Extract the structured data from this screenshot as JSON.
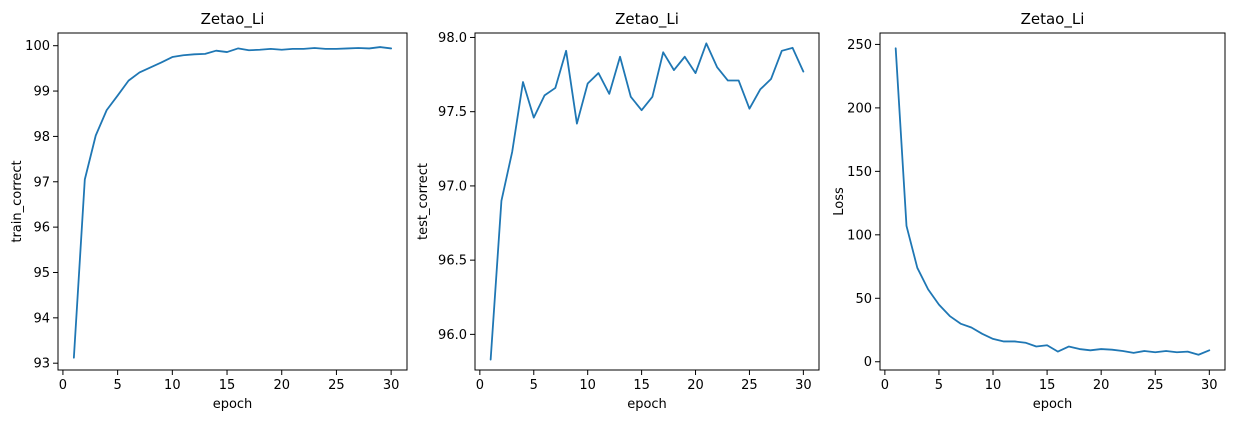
{
  "chart_data": [
    {
      "type": "line",
      "title": "Zetao_Li",
      "xlabel": "epoch",
      "ylabel": "train_correct",
      "xlim": [
        -0.45,
        31.45
      ],
      "ylim": [
        92.85,
        100.28
      ],
      "xticks": [
        0,
        5,
        10,
        15,
        20,
        25,
        30
      ],
      "yticks": [
        93,
        94,
        95,
        96,
        97,
        98,
        99,
        100
      ],
      "grid": false,
      "color": "#1f77b4",
      "series": [
        {
          "x": [
            1,
            2,
            3,
            4,
            5,
            6,
            7,
            8,
            9,
            10,
            11,
            12,
            13,
            14,
            15,
            16,
            17,
            18,
            19,
            20,
            21,
            22,
            23,
            24,
            25,
            26,
            27,
            28,
            29,
            30
          ],
          "y": [
            93.12,
            97.05,
            98.02,
            98.58,
            98.9,
            99.23,
            99.41,
            99.52,
            99.63,
            99.75,
            99.79,
            99.81,
            99.82,
            99.89,
            99.86,
            99.94,
            99.9,
            99.91,
            99.93,
            99.91,
            99.93,
            99.93,
            99.95,
            99.93,
            99.93,
            99.94,
            99.95,
            99.94,
            99.97,
            99.94
          ]
        }
      ]
    },
    {
      "type": "line",
      "title": "Zetao_Li",
      "xlabel": "epoch",
      "ylabel": "test_correct",
      "xlim": [
        -0.45,
        31.45
      ],
      "ylim": [
        95.76,
        98.03
      ],
      "xticks": [
        0,
        5,
        10,
        15,
        20,
        25,
        30
      ],
      "yticks": [
        96.0,
        96.5,
        97.0,
        97.5,
        98.0
      ],
      "ytick_labels": [
        "96.0",
        "96.5",
        "97.0",
        "97.5",
        "98.0"
      ],
      "grid": false,
      "color": "#1f77b4",
      "series": [
        {
          "x": [
            1,
            2,
            3,
            4,
            5,
            6,
            7,
            8,
            9,
            10,
            11,
            12,
            13,
            14,
            15,
            16,
            17,
            18,
            19,
            20,
            21,
            22,
            23,
            24,
            25,
            26,
            27,
            28,
            29,
            30
          ],
          "y": [
            95.83,
            96.9,
            97.23,
            97.7,
            97.46,
            97.61,
            97.66,
            97.91,
            97.42,
            97.69,
            97.76,
            97.62,
            97.87,
            97.6,
            97.51,
            97.6,
            97.9,
            97.78,
            97.87,
            97.76,
            97.96,
            97.8,
            97.71,
            97.71,
            97.52,
            97.65,
            97.72,
            97.91,
            97.93,
            97.77
          ]
        }
      ]
    },
    {
      "type": "line",
      "title": "Zetao_Li",
      "xlabel": "epoch",
      "ylabel": "Loss",
      "xlim": [
        -0.45,
        31.45
      ],
      "ylim": [
        -6.5,
        259
      ],
      "xticks": [
        0,
        5,
        10,
        15,
        20,
        25,
        30
      ],
      "yticks": [
        0,
        50,
        100,
        150,
        200,
        250
      ],
      "grid": false,
      "color": "#1f77b4",
      "series": [
        {
          "x": [
            1,
            2,
            3,
            4,
            5,
            6,
            7,
            8,
            9,
            10,
            11,
            12,
            13,
            14,
            15,
            16,
            17,
            18,
            19,
            20,
            21,
            22,
            23,
            24,
            25,
            26,
            27,
            28,
            29,
            30
          ],
          "y": [
            247,
            107,
            74,
            57,
            45,
            36,
            30,
            27,
            22,
            18,
            16,
            16,
            15,
            12,
            13,
            8,
            12,
            10,
            9,
            10,
            9.5,
            8.5,
            7,
            8.5,
            7.5,
            8.5,
            7.5,
            8,
            5.5,
            9
          ]
        }
      ]
    }
  ]
}
